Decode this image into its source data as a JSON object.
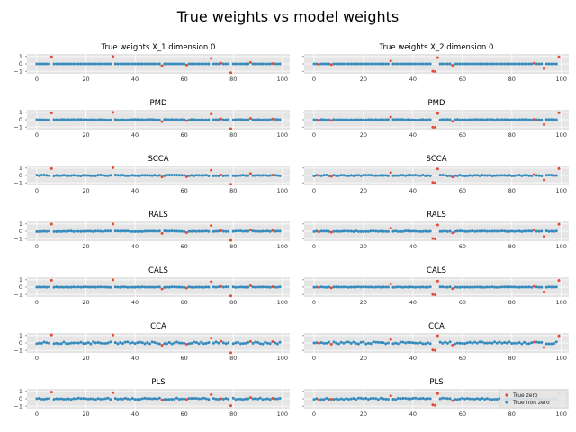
{
  "figure": {
    "title": "True weights vs model weights",
    "legend": {
      "zero_label": "True zero",
      "nonzero_label": "True non zero",
      "placement": "lower-right of last panel"
    }
  },
  "colors": {
    "zero": "#e24a33",
    "nonzero": "#348abd",
    "panel_bg": "#e5e5e5",
    "grid": "#ffffff"
  },
  "chart_data": {
    "type": "scatter",
    "n_features": 100,
    "xlim": [
      -4,
      103
    ],
    "ylim": [
      -1.35,
      1.35
    ],
    "xticks": [
      0,
      20,
      40,
      60,
      80,
      100
    ],
    "yticks": [
      -1,
      0,
      1
    ],
    "nonzero_indices": {
      "X_1": [
        6,
        31,
        51,
        61,
        71,
        75,
        79,
        87,
        96
      ],
      "X_2": [
        2,
        7,
        31,
        48,
        49,
        50,
        56,
        89,
        93,
        99
      ]
    },
    "rows": [
      {
        "name": "true",
        "titles": [
          "True weights X_1 dimension 0",
          "True weights X_2 dimension 0"
        ],
        "noise": 0.0,
        "scale": 1.0,
        "overrides": {
          "X_1": {
            "6": 0.95,
            "31": 1.0,
            "51": -0.25,
            "61": -0.15,
            "71": 0.75,
            "75": 0.1,
            "79": -1.2,
            "87": 0.2,
            "96": 0.05
          },
          "X_2": {
            "2": -0.05,
            "7": -0.1,
            "31": 0.4,
            "48": -1.0,
            "49": -1.05,
            "50": 0.85,
            "56": -0.2,
            "89": 0.1,
            "93": -0.65,
            "99": 0.95
          }
        }
      },
      {
        "name": "pmd",
        "titles": [
          "PMD",
          "PMD"
        ],
        "noise": 0.04,
        "scale": 1.0
      },
      {
        "name": "scca",
        "titles": [
          "SCCA",
          "SCCA"
        ],
        "noise": 0.06,
        "scale": 1.0
      },
      {
        "name": "rals",
        "titles": [
          "RALS",
          "RALS"
        ],
        "noise": 0.05,
        "scale": 1.0
      },
      {
        "name": "cals",
        "titles": [
          "CALS",
          "CALS"
        ],
        "noise": 0.03,
        "scale": 1.0
      },
      {
        "name": "cca",
        "titles": [
          "CCA",
          "CCA"
        ],
        "noise": 0.14,
        "scale": 1.0
      },
      {
        "name": "pls",
        "titles": [
          "PLS",
          "PLS"
        ],
        "noise": 0.1,
        "scale": 0.85
      }
    ]
  }
}
